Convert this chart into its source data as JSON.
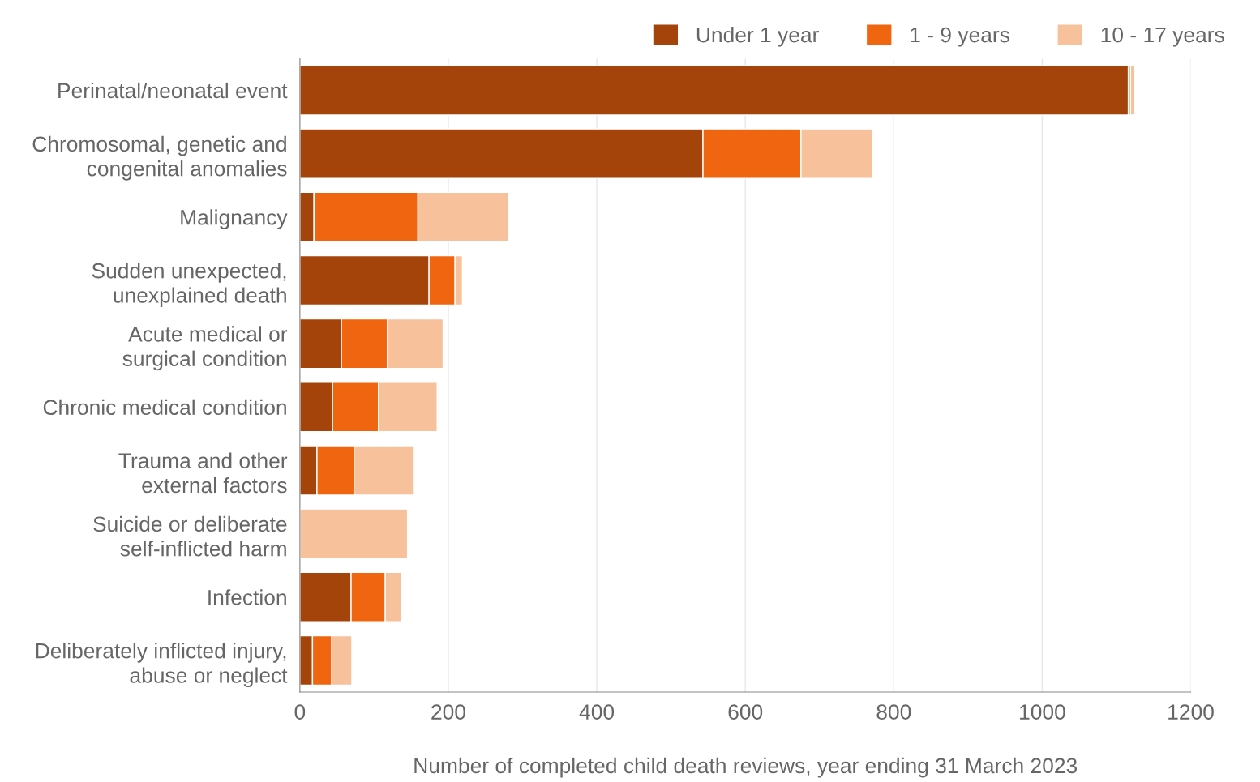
{
  "chart_data": {
    "type": "bar",
    "orientation": "horizontal",
    "stacked": true,
    "xlabel": "Number of completed child death reviews, year ending 31 March 2023",
    "categories": [
      "Perinatal/neonatal event",
      "Chromosomal, genetic and\ncongenital anomalies",
      "Malignancy",
      "Sudden unexpected,\nunexplained death",
      "Acute medical or\nsurgical condition",
      "Chronic medical condition",
      "Trauma and other\nexternal factors",
      "Suicide or deliberate\nself-inflicted harm",
      "Infection",
      "Deliberately inflicted injury,\nabuse or neglect"
    ],
    "series": [
      {
        "name": "Under 1 year",
        "color": "#a5440a",
        "values": [
          1116,
          543,
          19,
          174,
          56,
          44,
          23,
          0,
          69,
          17
        ]
      },
      {
        "name": "1 - 9 years",
        "color": "#f0650f",
        "values": [
          3,
          132,
          140,
          35,
          62,
          62,
          50,
          0,
          46,
          26
        ]
      },
      {
        "name": "10 - 17 years",
        "color": "#f7c19c",
        "values": [
          5,
          96,
          122,
          10,
          75,
          79,
          80,
          145,
          22,
          27
        ]
      }
    ],
    "xlim": [
      0,
      1200
    ],
    "xticks": [
      0,
      200,
      400,
      600,
      800,
      1000,
      1200
    ],
    "grid": "x",
    "legend": "top right"
  }
}
